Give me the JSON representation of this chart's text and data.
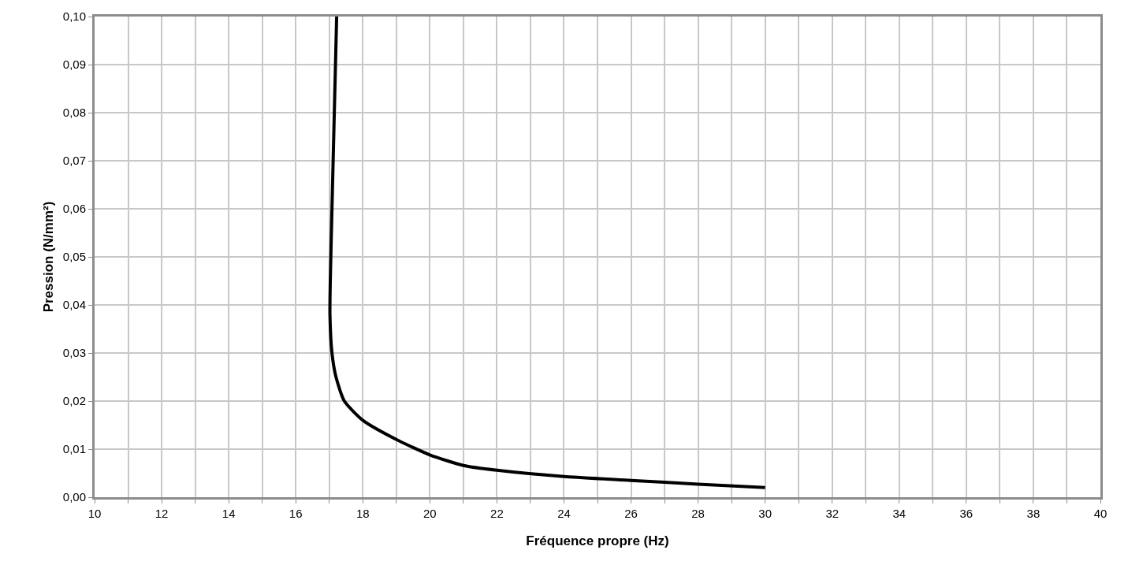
{
  "chart_data": {
    "type": "line",
    "xlabel": "Fréquence propre (Hz)",
    "ylabel": "Pression (N/mm²)",
    "series": [
      {
        "color": "#000000",
        "x": [
          17.22,
          17.15,
          17.08,
          17.03,
          17.02,
          17.08,
          17.2,
          17.45,
          18.0,
          19.0,
          20.0,
          21.0,
          22.0,
          24.0,
          26.0,
          28.0,
          30.0
        ],
        "values": [
          0.1,
          0.08,
          0.06,
          0.045,
          0.038,
          0.03,
          0.025,
          0.02,
          0.016,
          0.012,
          0.0088,
          0.0066,
          0.0056,
          0.0043,
          0.0035,
          0.0027,
          0.002
        ]
      }
    ],
    "xlim": [
      10,
      40
    ],
    "ylim": [
      0,
      0.1
    ],
    "xticks": [
      10,
      {
        "value": 11,
        "label": null
      },
      12,
      {
        "value": 13,
        "label": null
      },
      14,
      {
        "value": 15,
        "label": null
      },
      16,
      {
        "value": 17,
        "label": null
      },
      18,
      {
        "value": 19,
        "label": null
      },
      20,
      {
        "value": 21,
        "label": null
      },
      22,
      {
        "value": 23,
        "label": null
      },
      24,
      {
        "value": 25,
        "label": null
      },
      26,
      {
        "value": 27,
        "label": null
      },
      28,
      {
        "value": 29,
        "label": null
      },
      30,
      {
        "value": 31,
        "label": null
      },
      32,
      {
        "value": 33,
        "label": null
      },
      34,
      {
        "value": 35,
        "label": null
      },
      36,
      {
        "value": 37,
        "label": null
      },
      38,
      {
        "value": 39,
        "label": null
      },
      40
    ],
    "yticks": [
      {
        "value": 0,
        "label": "0,00"
      },
      {
        "value": 0.01,
        "label": "0,01"
      },
      {
        "value": 0.02,
        "label": "0,02"
      },
      {
        "value": 0.03,
        "label": "0,03"
      },
      {
        "value": 0.04,
        "label": "0,04"
      },
      {
        "value": 0.05,
        "label": "0,05"
      },
      {
        "value": 0.06,
        "label": "0,06"
      },
      {
        "value": 0.07,
        "label": "0,07"
      },
      {
        "value": 0.08,
        "label": "0,08"
      },
      {
        "value": 0.09,
        "label": "0,09"
      },
      {
        "value": 0.1,
        "label": "0,10"
      }
    ],
    "grid": true,
    "marker": "none",
    "line_style": "solid"
  }
}
